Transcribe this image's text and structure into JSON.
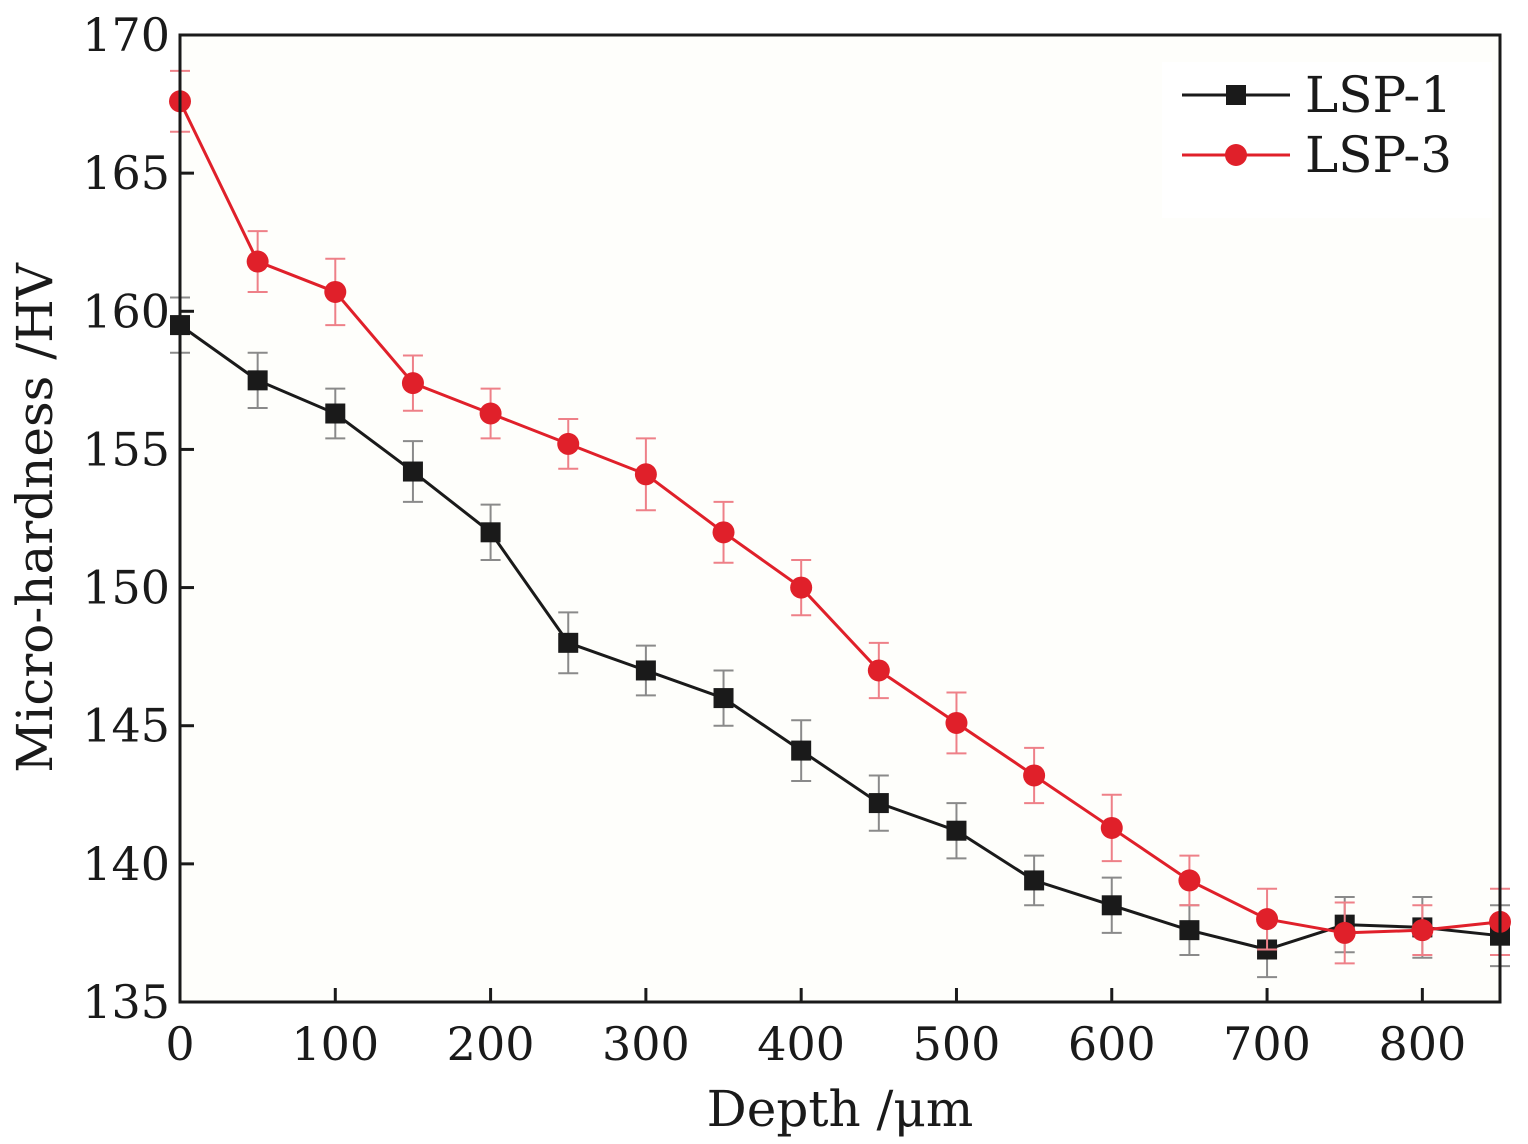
{
  "chart_data": {
    "type": "line",
    "xlabel": "Depth /μm",
    "ylabel": "Micro-hardness /HV",
    "xlim": [
      0,
      850
    ],
    "ylim": [
      135,
      170
    ],
    "xticks": [
      0,
      100,
      200,
      300,
      400,
      500,
      600,
      700,
      800
    ],
    "yticks": [
      135,
      140,
      145,
      150,
      155,
      160,
      165,
      170
    ],
    "grid": false,
    "legend_position": "top-right",
    "x": [
      0,
      50,
      100,
      150,
      200,
      250,
      300,
      350,
      400,
      450,
      500,
      550,
      600,
      650,
      700,
      750,
      800,
      850
    ],
    "series": [
      {
        "name": "LSP-1",
        "color": "#1a1a1a",
        "marker": "square",
        "values": [
          159.5,
          157.5,
          156.3,
          154.2,
          152.0,
          148.0,
          147.0,
          146.0,
          144.1,
          142.2,
          141.2,
          139.4,
          138.5,
          137.6,
          136.9,
          137.8,
          137.7,
          137.4
        ],
        "errors": [
          1.0,
          1.0,
          0.9,
          1.1,
          1.0,
          1.1,
          0.9,
          1.0,
          1.1,
          1.0,
          1.0,
          0.9,
          1.0,
          0.9,
          1.0,
          1.0,
          1.1,
          1.1
        ]
      },
      {
        "name": "LSP-3",
        "color": "#e0202a",
        "marker": "circle",
        "values": [
          167.6,
          161.8,
          160.7,
          157.4,
          156.3,
          155.2,
          154.1,
          152.0,
          150.0,
          147.0,
          145.1,
          143.2,
          141.3,
          139.4,
          138.0,
          137.5,
          137.6,
          137.9
        ],
        "errors": [
          1.1,
          1.1,
          1.2,
          1.0,
          0.9,
          0.9,
          1.3,
          1.1,
          1.0,
          1.0,
          1.1,
          1.0,
          1.2,
          0.9,
          1.1,
          1.1,
          0.9,
          1.2
        ]
      }
    ]
  }
}
